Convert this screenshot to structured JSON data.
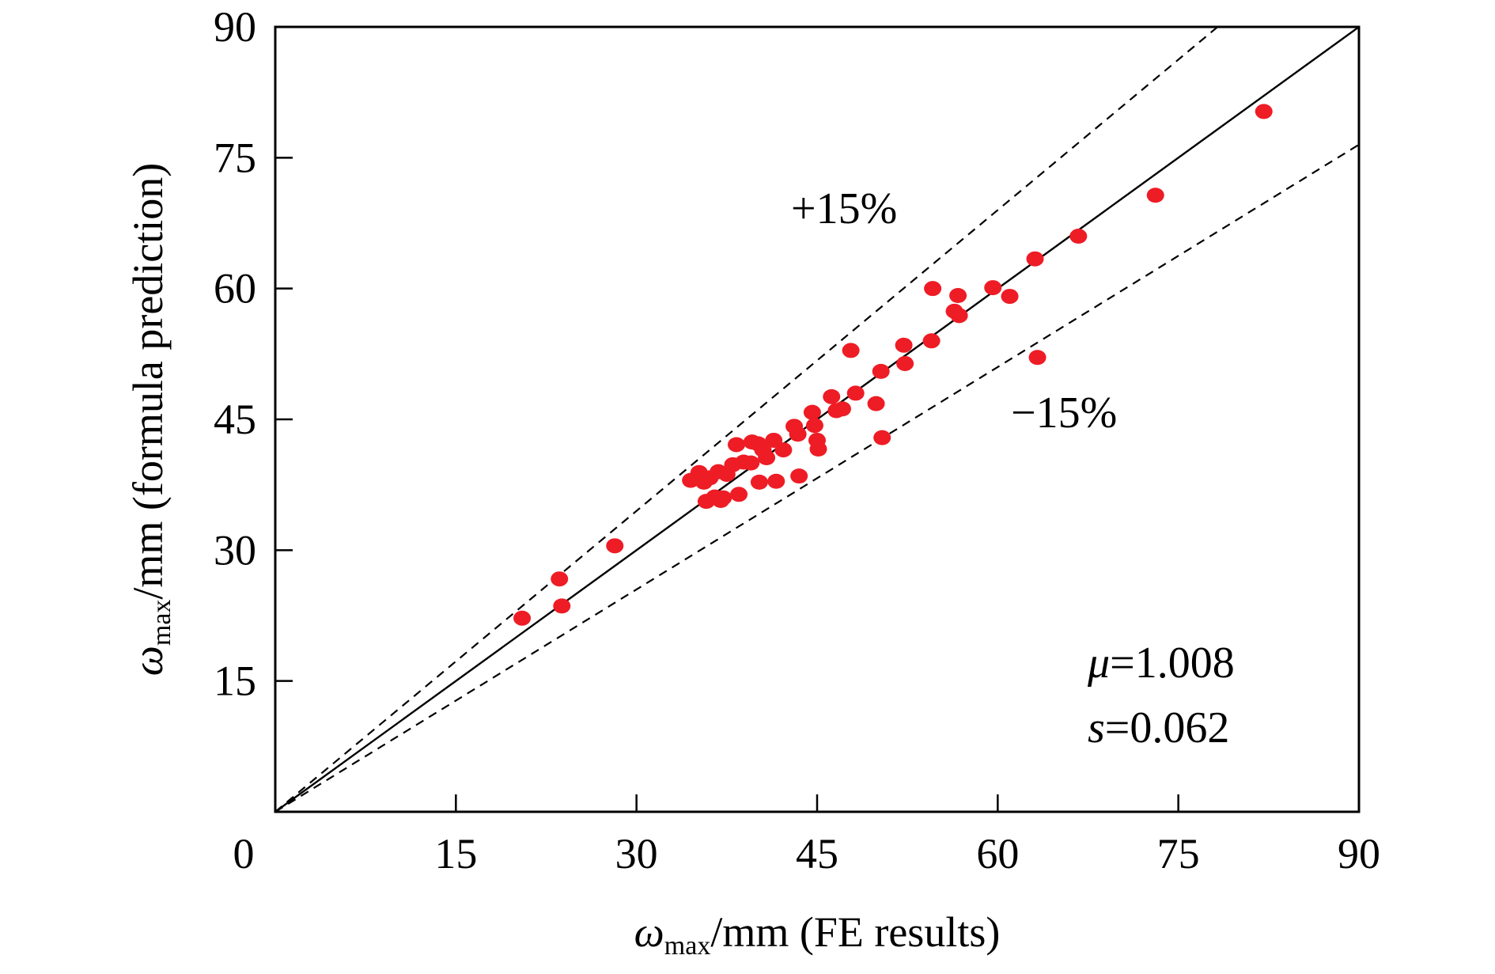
{
  "chart_data": {
    "type": "scatter",
    "title": "",
    "xlabel": {
      "symbol": "ω",
      "sub": "max",
      "rest": "/mm (FE results)"
    },
    "ylabel": {
      "symbol": "ω",
      "sub": "max",
      "rest": "/mm (formula prediction)"
    },
    "xlim": [
      0,
      90
    ],
    "ylim": [
      0,
      90
    ],
    "x_ticks": [
      0,
      15,
      30,
      45,
      60,
      75,
      90
    ],
    "y_ticks": [
      15,
      30,
      45,
      60,
      75,
      90
    ],
    "x_tick_labels": [
      "0",
      "15",
      "30",
      "45",
      "60",
      "75",
      "90"
    ],
    "y_tick_labels": [
      "15",
      "30",
      "45",
      "60",
      "75",
      "90"
    ],
    "grid": false,
    "point_color": "#ee1c25",
    "reference_lines": [
      {
        "name": "y=x",
        "slope": 1.0,
        "style": "solid"
      },
      {
        "name": "+15%",
        "slope": 1.15,
        "style": "dashed"
      },
      {
        "name": "-15%",
        "slope": 0.85,
        "style": "dashed"
      }
    ],
    "annotations": {
      "plus": "+15%",
      "minus": "−15%",
      "mu_symbol": "μ",
      "mu_value": "=1.008",
      "s_symbol": "s",
      "s_value": "=0.062"
    },
    "points": [
      [
        20.5,
        22.2
      ],
      [
        23.6,
        26.7
      ],
      [
        23.8,
        23.6
      ],
      [
        28.2,
        30.5
      ],
      [
        34.5,
        38.0
      ],
      [
        35.2,
        38.9
      ],
      [
        35.6,
        37.8
      ],
      [
        35.8,
        35.6
      ],
      [
        36.1,
        38.3
      ],
      [
        36.5,
        36.1
      ],
      [
        36.8,
        39.0
      ],
      [
        37.0,
        35.7
      ],
      [
        37.2,
        36.0
      ],
      [
        37.5,
        38.7
      ],
      [
        38.0,
        39.8
      ],
      [
        38.3,
        42.1
      ],
      [
        38.5,
        36.4
      ],
      [
        38.9,
        40.1
      ],
      [
        39.5,
        40.0
      ],
      [
        39.6,
        42.4
      ],
      [
        40.1,
        42.2
      ],
      [
        40.2,
        37.8
      ],
      [
        40.5,
        41.5
      ],
      [
        40.8,
        40.6
      ],
      [
        41.4,
        42.6
      ],
      [
        41.6,
        37.9
      ],
      [
        42.2,
        41.5
      ],
      [
        43.1,
        44.2
      ],
      [
        43.4,
        43.3
      ],
      [
        43.5,
        38.5
      ],
      [
        44.6,
        45.8
      ],
      [
        44.8,
        44.3
      ],
      [
        45.0,
        42.6
      ],
      [
        45.1,
        41.6
      ],
      [
        46.2,
        47.6
      ],
      [
        46.6,
        46.0
      ],
      [
        47.1,
        46.2
      ],
      [
        47.8,
        52.9
      ],
      [
        48.2,
        48.0
      ],
      [
        49.9,
        46.8
      ],
      [
        50.3,
        50.5
      ],
      [
        50.4,
        42.9
      ],
      [
        52.2,
        53.5
      ],
      [
        52.3,
        51.4
      ],
      [
        54.5,
        54.0
      ],
      [
        54.6,
        60.0
      ],
      [
        56.4,
        57.4
      ],
      [
        56.7,
        59.2
      ],
      [
        56.8,
        56.9
      ],
      [
        59.6,
        60.1
      ],
      [
        61.0,
        59.1
      ],
      [
        63.1,
        63.4
      ],
      [
        63.3,
        52.1
      ],
      [
        66.7,
        66.0
      ],
      [
        73.1,
        70.7
      ],
      [
        82.1,
        80.3
      ]
    ]
  }
}
